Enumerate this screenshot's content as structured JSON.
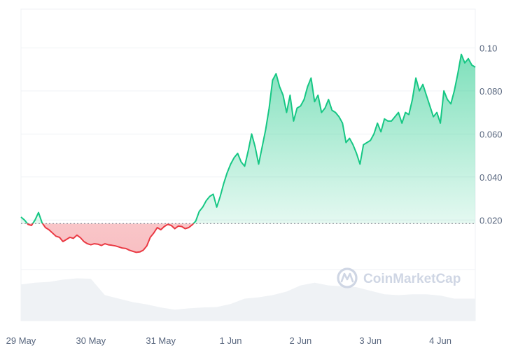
{
  "chart_data": {
    "type": "area",
    "title": "",
    "xlabel": "",
    "ylabel": "",
    "x_ticks": [
      "29 May",
      "30 May",
      "31 May",
      "1 Jun",
      "2 Jun",
      "3 Jun",
      "4 Jun"
    ],
    "y_ticks": [
      "0.020",
      "0.040",
      "0.060",
      "0.080",
      "0.10"
    ],
    "ylim": [
      -0.003,
      0.118
    ],
    "baseline": 0.0184,
    "baseline_color_above": "#16c784",
    "baseline_color_below": "#ea3943",
    "grid": true,
    "legend": "none",
    "watermark": "CoinMarketCap",
    "series": [
      {
        "x": [
          0,
          0.05,
          0.1,
          0.15,
          0.2,
          0.25,
          0.3,
          0.35,
          0.4,
          0.45,
          0.5,
          0.55,
          0.6,
          0.65,
          0.7,
          0.75,
          0.8,
          0.85,
          0.9,
          0.95,
          1.0,
          1.05,
          1.1,
          1.15,
          1.2,
          1.25,
          1.3,
          1.35,
          1.4,
          1.45,
          1.5,
          1.55,
          1.6,
          1.65,
          1.7,
          1.75,
          1.8,
          1.85,
          1.9,
          1.95,
          2.0,
          2.05,
          2.1,
          2.15,
          2.2,
          2.25,
          2.3,
          2.35,
          2.4,
          2.45,
          2.5,
          2.55,
          2.6,
          2.65,
          2.7,
          2.75,
          2.8,
          2.85,
          2.9,
          2.95,
          3.0,
          3.05,
          3.1,
          3.15,
          3.2,
          3.25,
          3.3,
          3.35,
          3.4,
          3.45,
          3.5,
          3.55,
          3.6,
          3.65,
          3.7,
          3.75,
          3.8,
          3.85,
          3.9,
          3.95,
          4.0,
          4.05,
          4.1,
          4.15,
          4.2,
          4.25,
          4.3,
          4.35,
          4.4,
          4.45,
          4.5,
          4.55,
          4.6,
          4.65,
          4.7,
          4.75,
          4.8,
          4.85,
          4.9,
          4.95,
          5.0,
          5.05,
          5.1,
          5.15,
          5.2,
          5.25,
          5.3,
          5.35,
          5.4,
          5.45,
          5.5,
          5.55,
          5.6,
          5.65,
          5.7,
          5.75,
          5.8,
          5.85,
          5.9,
          5.95,
          6.0,
          6.05,
          6.1,
          6.15,
          6.2,
          6.25,
          6.3,
          6.35,
          6.4,
          6.45,
          6.5
        ],
        "values": [
          0.0214,
          0.02,
          0.018,
          0.0175,
          0.02,
          0.0235,
          0.0188,
          0.0165,
          0.0155,
          0.014,
          0.0125,
          0.012,
          0.01,
          0.011,
          0.012,
          0.0115,
          0.013,
          0.0118,
          0.01,
          0.009,
          0.0085,
          0.009,
          0.0088,
          0.0082,
          0.009,
          0.0085,
          0.0083,
          0.008,
          0.0075,
          0.007,
          0.0068,
          0.006,
          0.0055,
          0.005,
          0.0052,
          0.006,
          0.008,
          0.012,
          0.014,
          0.0165,
          0.0155,
          0.017,
          0.018,
          0.0175,
          0.016,
          0.0172,
          0.017,
          0.016,
          0.0165,
          0.0178,
          0.0195,
          0.024,
          0.026,
          0.029,
          0.031,
          0.032,
          0.026,
          0.031,
          0.037,
          0.042,
          0.046,
          0.049,
          0.051,
          0.047,
          0.045,
          0.052,
          0.06,
          0.054,
          0.046,
          0.054,
          0.062,
          0.072,
          0.085,
          0.088,
          0.082,
          0.078,
          0.07,
          0.078,
          0.066,
          0.072,
          0.073,
          0.076,
          0.082,
          0.086,
          0.075,
          0.078,
          0.07,
          0.072,
          0.076,
          0.071,
          0.07,
          0.068,
          0.065,
          0.056,
          0.058,
          0.055,
          0.051,
          0.046,
          0.055,
          0.056,
          0.057,
          0.06,
          0.065,
          0.061,
          0.067,
          0.066,
          0.066,
          0.068,
          0.07,
          0.065,
          0.07,
          0.069,
          0.076,
          0.086,
          0.08,
          0.083,
          0.078,
          0.073,
          0.068,
          0.07,
          0.065,
          0.08,
          0.076,
          0.074,
          0.08,
          0.088,
          0.097,
          0.093,
          0.095,
          0.092,
          0.091
        ]
      }
    ],
    "volume": {
      "x": [
        0,
        0.2,
        0.4,
        0.6,
        0.8,
        1.0,
        1.2,
        1.4,
        1.6,
        1.8,
        2.0,
        2.2,
        2.4,
        2.6,
        2.8,
        3.0,
        3.2,
        3.4,
        3.6,
        3.8,
        4.0,
        4.2,
        4.4,
        4.6,
        4.8,
        5.0,
        5.2,
        5.4,
        5.6,
        5.8,
        6.0,
        6.2,
        6.4,
        6.5
      ],
      "values": [
        0.82,
        0.86,
        0.88,
        0.93,
        0.96,
        0.95,
        0.58,
        0.5,
        0.42,
        0.37,
        0.3,
        0.25,
        0.28,
        0.3,
        0.31,
        0.38,
        0.5,
        0.53,
        0.58,
        0.66,
        0.8,
        0.86,
        0.8,
        0.78,
        0.76,
        0.68,
        0.6,
        0.58,
        0.6,
        0.6,
        0.57,
        0.5,
        0.5,
        0.5
      ]
    }
  }
}
